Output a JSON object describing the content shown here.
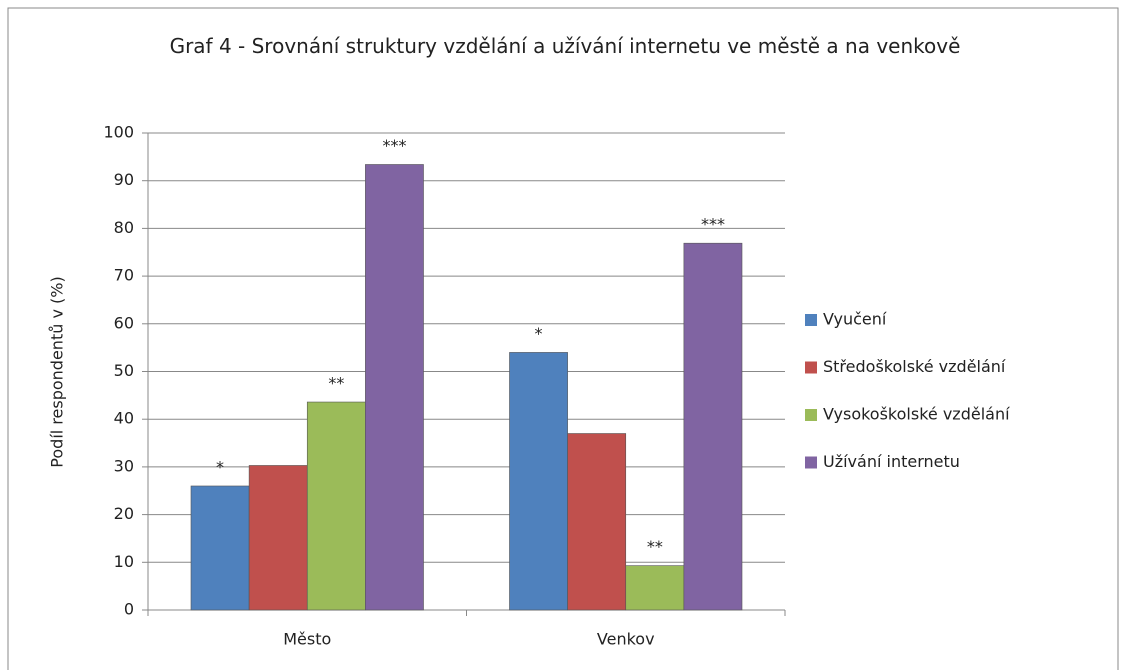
{
  "chart_data": {
    "type": "bar",
    "title": "Graf 4 - Srovnání struktury vzdělání a užívání internetu ve městě a na venkově",
    "y_label": "Podíl respondentů v (%)",
    "categories": [
      "Město",
      "Venkov"
    ],
    "series": [
      {
        "name": "Vyučení",
        "color": "#4f81bd",
        "values": [
          26,
          54
        ],
        "marker": "*"
      },
      {
        "name": "Středoškolské vzdělání",
        "color": "#c0504d",
        "values": [
          30.3,
          37
        ]
      },
      {
        "name": "Vysokoškolské vzdělání",
        "color": "#9bbb59",
        "values": [
          43.6,
          9.3
        ],
        "marker": "**"
      },
      {
        "name": "Užívání internetu",
        "color": "#8064a2",
        "values": [
          93.4,
          76.9
        ],
        "marker": "***"
      }
    ],
    "ylim": [
      0,
      100
    ],
    "yticks": [
      0,
      10,
      20,
      30,
      40,
      50,
      60,
      70,
      80,
      90,
      100
    ],
    "grid": true,
    "legend": "right"
  }
}
